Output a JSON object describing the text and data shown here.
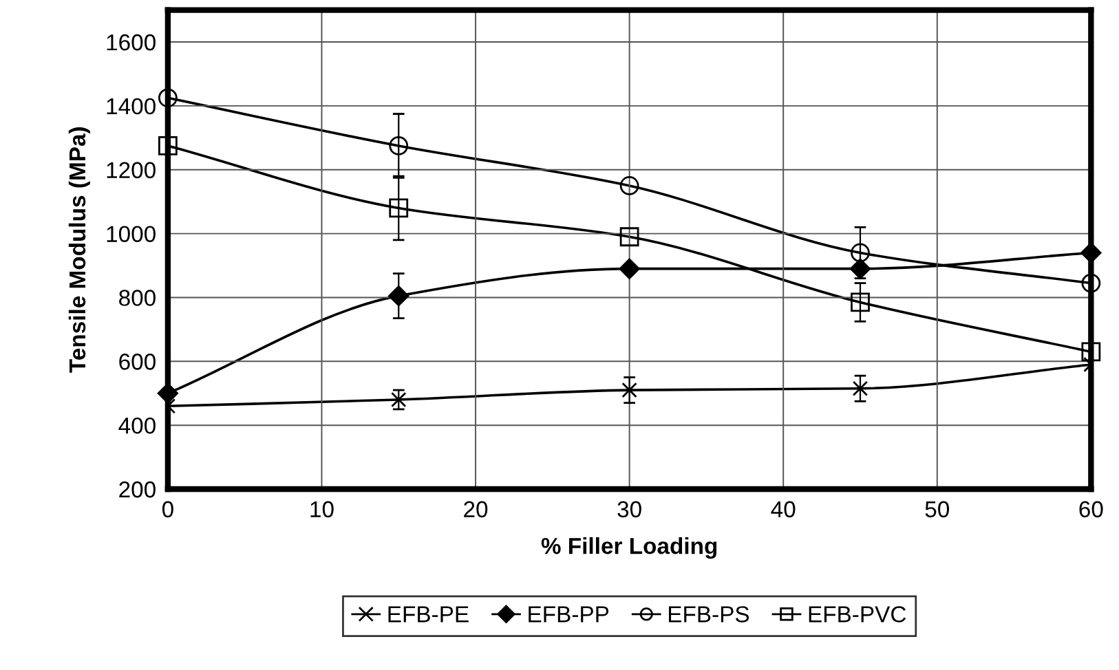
{
  "chart_data": {
    "type": "line",
    "xlabel": "% Filler Loading",
    "ylabel": "Tensile Modulus (MPa)",
    "x": [
      0,
      15,
      30,
      45,
      60
    ],
    "series": [
      {
        "name": "EFB-PE",
        "color": "#000000",
        "marker": "cross",
        "values": [
          460,
          480,
          510,
          515,
          590
        ],
        "errors": [
          null,
          30,
          40,
          40,
          null
        ]
      },
      {
        "name": "EFB-PP",
        "color": "#000000",
        "marker": "diamond",
        "values": [
          500,
          805,
          890,
          890,
          940
        ],
        "errors": [
          null,
          70,
          null,
          null,
          null
        ]
      },
      {
        "name": "EFB-PS",
        "color": "#000000",
        "marker": "circle",
        "values": [
          1425,
          1275,
          1150,
          940,
          845
        ],
        "errors": [
          null,
          100,
          null,
          80,
          null
        ]
      },
      {
        "name": "EFB-PVC",
        "color": "#000000",
        "marker": "square",
        "values": [
          1275,
          1080,
          990,
          785,
          630
        ],
        "errors": [
          null,
          100,
          null,
          60,
          null
        ]
      }
    ],
    "xlim": [
      0,
      60
    ],
    "xticks": [
      0,
      10,
      20,
      30,
      40,
      50,
      60
    ],
    "ylim": [
      200,
      1700
    ],
    "yticks": [
      200,
      400,
      600,
      800,
      1000,
      1200,
      1400,
      1600
    ],
    "grid": true,
    "legend": "bottom",
    "line_style": "solid"
  }
}
